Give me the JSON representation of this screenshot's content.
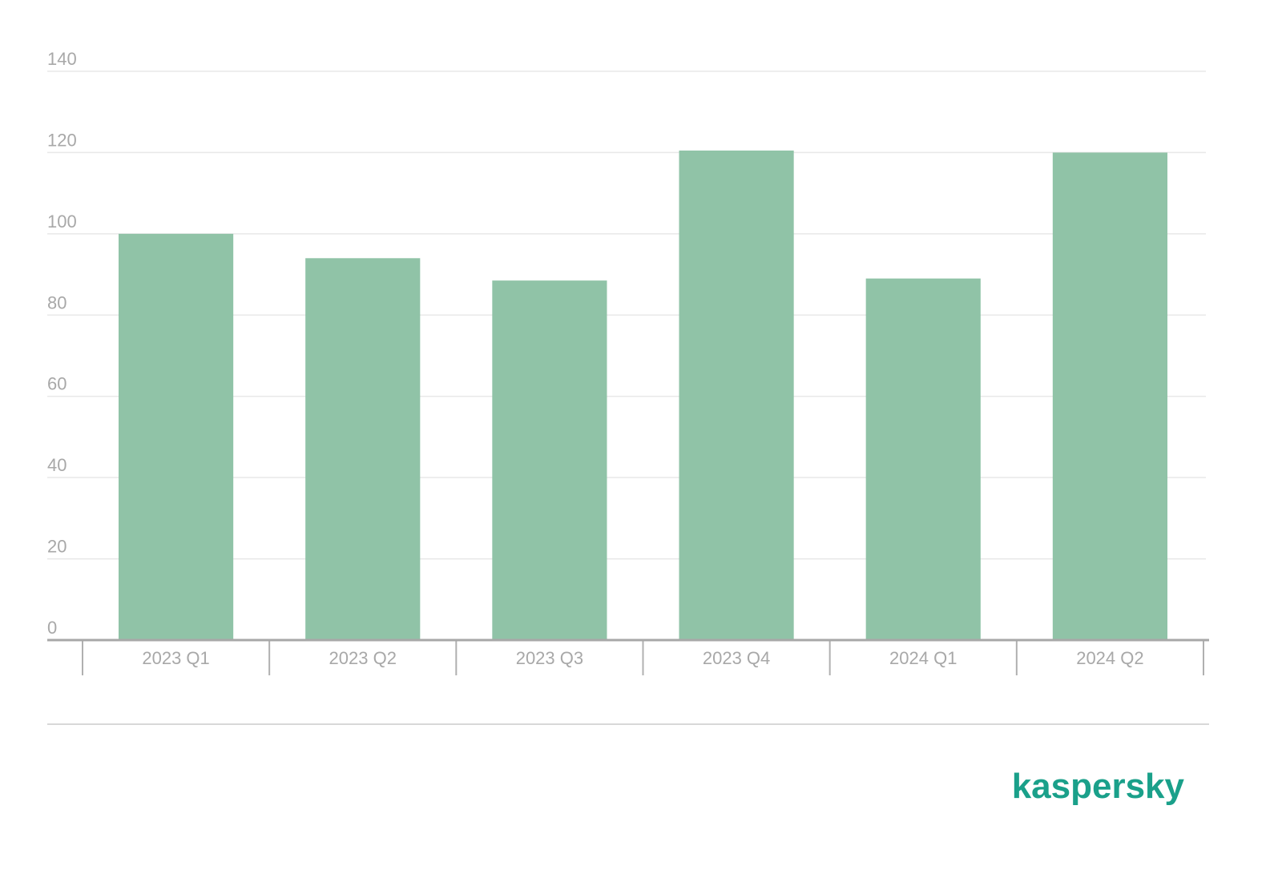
{
  "chart_data": {
    "type": "bar",
    "categories": [
      "2023 Q1",
      "2023 Q2",
      "2023 Q3",
      "2023 Q4",
      "2024 Q1",
      "2024 Q2"
    ],
    "values": [
      100,
      94,
      88.5,
      120.5,
      89,
      120
    ],
    "color": "#90c3a7",
    "ylim": [
      0,
      140
    ],
    "yticks": [
      0,
      20,
      40,
      60,
      80,
      100,
      120,
      140
    ],
    "grid": true,
    "logo": "kaspersky"
  }
}
